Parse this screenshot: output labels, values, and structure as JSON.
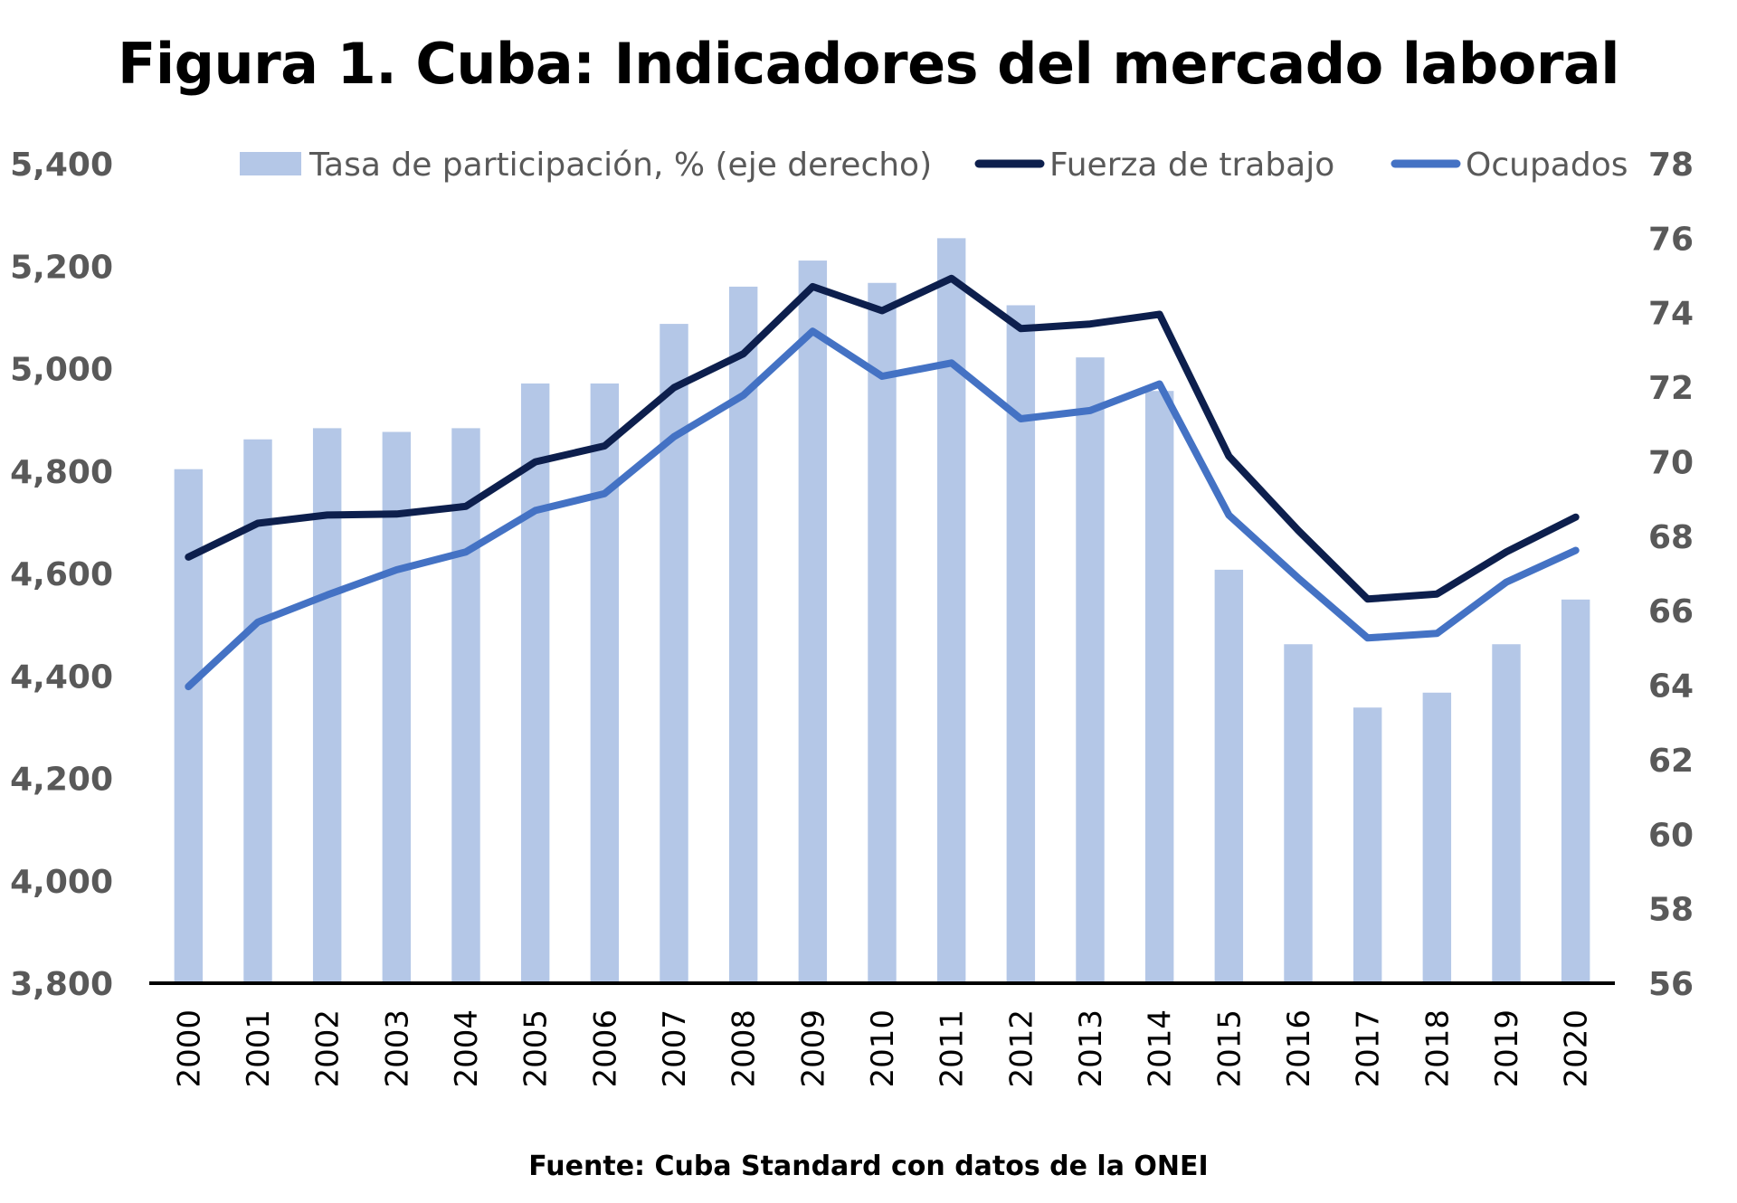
{
  "chart_data": {
    "type": "bar-line-combo",
    "title": "Figura 1. Cuba: Indicadores del mercado laboral",
    "source": "Fuente: Cuba Standard con datos de la ONEI",
    "categories": [
      "2000",
      "2001",
      "2002",
      "2003",
      "2004",
      "2005",
      "2006",
      "2007",
      "2008",
      "2009",
      "2010",
      "2011",
      "2012",
      "2013",
      "2014",
      "2015",
      "2016",
      "2017",
      "2018",
      "2019",
      "2020"
    ],
    "y_left": {
      "min": 3800,
      "max": 5400,
      "step": 200,
      "ticks": [
        "3,800",
        "4,000",
        "4,200",
        "4,400",
        "4,600",
        "4,800",
        "5,000",
        "5,200",
        "5,400"
      ]
    },
    "y_right": {
      "min": 56,
      "max": 78,
      "step": 2,
      "ticks": [
        "56",
        "58",
        "60",
        "62",
        "64",
        "66",
        "68",
        "70",
        "72",
        "74",
        "76",
        "78"
      ]
    },
    "grid": false,
    "legend_position": "top",
    "series": [
      {
        "name": "Tasa de participación, % (eje derecho)",
        "type": "bar",
        "axis": "right",
        "color": "#b4c7e7",
        "values": [
          69.8,
          70.6,
          70.9,
          70.8,
          70.9,
          72.1,
          72.1,
          73.7,
          74.7,
          75.4,
          74.8,
          76.0,
          74.2,
          72.8,
          71.9,
          67.1,
          65.1,
          63.4,
          63.8,
          65.1,
          66.3
        ]
      },
      {
        "name": "Fuerza de trabajo",
        "type": "line",
        "axis": "left",
        "color": "#0d1f4d",
        "values": [
          4632,
          4698,
          4714,
          4716,
          4731,
          4818,
          4849,
          4963,
          5029,
          5160,
          5113,
          5176,
          5078,
          5087,
          5106,
          4829,
          4684,
          4550,
          4560,
          4642,
          4710
        ]
      },
      {
        "name": "Ocupados",
        "type": "line",
        "axis": "left",
        "color": "#4472c4",
        "values": [
          4379,
          4505,
          4558,
          4607,
          4642,
          4723,
          4756,
          4867,
          4948,
          5073,
          4985,
          5011,
          4902,
          4918,
          4970,
          4714,
          4591,
          4474,
          4483,
          4583,
          4645
        ]
      }
    ]
  }
}
